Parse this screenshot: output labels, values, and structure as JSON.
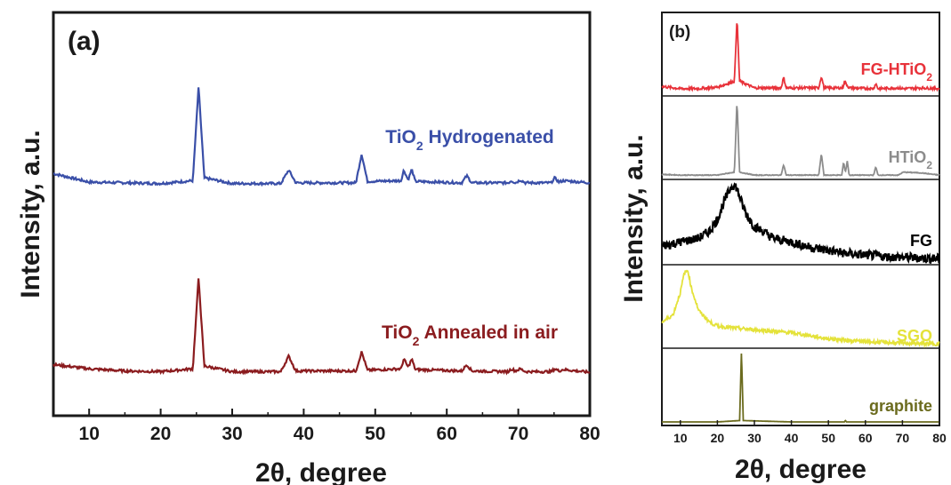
{
  "chart_data": [
    {
      "type": "line",
      "panel_label": "(a)",
      "xlabel": "2θ, degree",
      "ylabel": "Intensity, a.u.",
      "xlim": [
        5,
        80
      ],
      "xticks": [
        10,
        20,
        30,
        40,
        50,
        60,
        70,
        80
      ],
      "y_ticks_shown": false,
      "grid": false,
      "series": [
        {
          "name": "TiO2 Hydrogenated",
          "label_main": "TiO",
          "label_sub": "2",
          "label_rest": " Hydrogenated",
          "color": "#3a4fa8",
          "x": [
            5,
            10,
            15,
            20,
            24.5,
            25.3,
            26.1,
            30,
            36.8,
            37.9,
            38.9,
            47.3,
            48.1,
            48.9,
            53.6,
            54.0,
            54.6,
            55.1,
            55.6,
            62.1,
            62.8,
            63.5,
            68.6,
            69.0,
            69.6,
            70.3,
            71.0,
            74.6,
            75.1,
            75.7,
            76.3,
            80
          ],
          "y": [
            2.2,
            1.0,
            0.9,
            0.8,
            1.2,
            14.5,
            1.6,
            0.8,
            0.8,
            2.7,
            0.9,
            0.9,
            5.0,
            1.1,
            1.2,
            2.7,
            1.3,
            2.8,
            1.1,
            0.9,
            1.9,
            0.9,
            0.9,
            1.2,
            0.9,
            1.3,
            0.9,
            0.9,
            1.6,
            1.0,
            1.2,
            0.9
          ]
        },
        {
          "name": "TiO2 Annealed in air",
          "label_main": "TiO",
          "label_sub": "2",
          "label_rest": " Annealed in air",
          "color": "#8b1c1f",
          "x": [
            5,
            10,
            15,
            20,
            24.5,
            25.3,
            26.1,
            30,
            36.8,
            37.9,
            38.9,
            47.3,
            48.1,
            48.9,
            53.6,
            54.0,
            54.6,
            55.1,
            55.6,
            62.1,
            62.8,
            63.5,
            68.6,
            69.0,
            69.6,
            70.3,
            71.0,
            74.6,
            75.1,
            75.7,
            76.3,
            80
          ],
          "y": [
            2.2,
            1.6,
            1.3,
            1.2,
            1.6,
            14.5,
            2.0,
            1.2,
            1.2,
            3.4,
            1.3,
            1.3,
            4.0,
            1.4,
            1.6,
            3.0,
            1.8,
            3.0,
            1.5,
            1.3,
            2.2,
            1.3,
            1.2,
            1.6,
            1.3,
            1.6,
            1.2,
            1.2,
            1.6,
            1.3,
            1.5,
            1.1
          ]
        }
      ]
    },
    {
      "type": "line",
      "panel_label": "(b)",
      "xlabel": "2θ, degree",
      "ylabel": "Intensity, a.u.",
      "xlim": [
        5,
        80
      ],
      "xticks": [
        10,
        20,
        30,
        40,
        50,
        60,
        70,
        80
      ],
      "y_ticks_shown": false,
      "grid": false,
      "stacked_subpanels": true,
      "series": [
        {
          "name": "FG-HTiO2",
          "label_main": "FG-HTiO",
          "label_sub": "2",
          "label_rest": "",
          "color": "#e8323a",
          "x": [
            5,
            10,
            15,
            20,
            24.6,
            25.3,
            26.0,
            30,
            37.2,
            37.9,
            38.6,
            47.4,
            48.1,
            48.8,
            53.9,
            54.3,
            55.0,
            55.6,
            62.2,
            62.8,
            63.4,
            68.9,
            70.2,
            75.1,
            80
          ],
          "y": [
            0.08,
            0.05,
            0.05,
            0.07,
            0.15,
            1.0,
            0.15,
            0.06,
            0.06,
            0.2,
            0.06,
            0.06,
            0.22,
            0.06,
            0.06,
            0.15,
            0.1,
            0.06,
            0.05,
            0.12,
            0.05,
            0.06,
            0.05,
            0.06,
            0.05
          ]
        },
        {
          "name": "HTiO2",
          "label_main": "HTiO",
          "label_sub": "2",
          "label_rest": "",
          "color": "#8c8c8c",
          "x": [
            5,
            10,
            15,
            20,
            24.6,
            25.3,
            26.0,
            30,
            37.2,
            37.9,
            38.6,
            47.4,
            48.1,
            48.8,
            53.6,
            54.1,
            54.6,
            55.1,
            55.6,
            62.2,
            62.8,
            63.4,
            68.9,
            70.2,
            75.1,
            80
          ],
          "y": [
            0.02,
            0.01,
            0.01,
            0.01,
            0.05,
            1.0,
            0.05,
            0.01,
            0.01,
            0.15,
            0.01,
            0.01,
            0.3,
            0.01,
            0.01,
            0.18,
            0.05,
            0.2,
            0.01,
            0.01,
            0.12,
            0.01,
            0.01,
            0.05,
            0.04,
            0.01
          ]
        },
        {
          "name": "FG",
          "label_main": "FG",
          "label_sub": "",
          "label_rest": "",
          "color": "#000000",
          "x": [
            5,
            10,
            15,
            18,
            20,
            22,
            24,
            25,
            26,
            27,
            28,
            30,
            32,
            35,
            40,
            45,
            50,
            55,
            60,
            65,
            70,
            75,
            80
          ],
          "y": [
            0.2,
            0.25,
            0.3,
            0.4,
            0.55,
            0.8,
            1.0,
            0.98,
            0.85,
            0.7,
            0.6,
            0.45,
            0.4,
            0.3,
            0.25,
            0.18,
            0.14,
            0.1,
            0.08,
            0.06,
            0.05,
            0.04,
            0.03
          ]
        },
        {
          "name": "SGO",
          "label_main": "SGO",
          "label_sub": "",
          "label_rest": "",
          "color": "#e4e23a",
          "x": [
            5,
            8,
            10,
            11,
            12,
            13,
            15,
            18,
            20,
            25,
            30,
            35,
            40,
            45,
            50,
            55,
            60,
            70,
            80
          ],
          "y": [
            0.3,
            0.4,
            0.7,
            0.95,
            1.0,
            0.75,
            0.45,
            0.3,
            0.25,
            0.22,
            0.2,
            0.18,
            0.16,
            0.12,
            0.08,
            0.06,
            0.04,
            0.02,
            0.01
          ]
        },
        {
          "name": "graphite",
          "label_main": "graphite",
          "label_sub": "",
          "label_rest": "",
          "color": "#6b6b1e",
          "x": [
            5,
            20,
            26.0,
            26.5,
            27.0,
            40,
            54.3,
            54.6,
            54.9,
            80
          ],
          "y": [
            0.0,
            0.0,
            0.02,
            1.0,
            0.02,
            0.0,
            0.0,
            0.02,
            0.0,
            0.0
          ]
        }
      ]
    }
  ]
}
